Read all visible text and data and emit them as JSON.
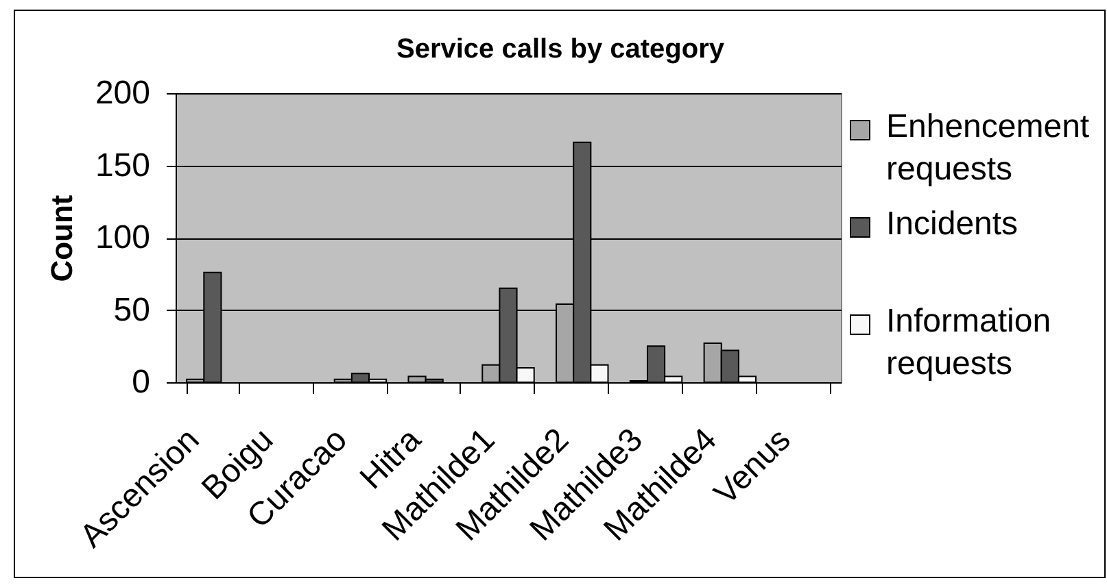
{
  "chart_data": {
    "type": "bar",
    "title": "Service calls by category",
    "ylabel": "Count",
    "categories": [
      "Ascension",
      "Boigu",
      "Curacao",
      "Hitra",
      "Mathilde1",
      "Mathilde2",
      "Mathilde3",
      "Mathilde4",
      "Venus"
    ],
    "series": [
      {
        "name": "Enhencement requests",
        "color": "#a6a6a6",
        "values": [
          2,
          0,
          2,
          4,
          12,
          54,
          1,
          27,
          0
        ]
      },
      {
        "name": "Incidents",
        "color": "#595959",
        "values": [
          76,
          0,
          6,
          2,
          65,
          166,
          25,
          22,
          0
        ]
      },
      {
        "name": "Information requests",
        "color": "#f8f8f8",
        "values": [
          0,
          0,
          2,
          0,
          10,
          12,
          4,
          4,
          0
        ]
      }
    ],
    "ylim": [
      0,
      200
    ],
    "yticks": [
      0,
      50,
      100,
      150,
      200
    ],
    "grid": "y",
    "legend": "right"
  }
}
